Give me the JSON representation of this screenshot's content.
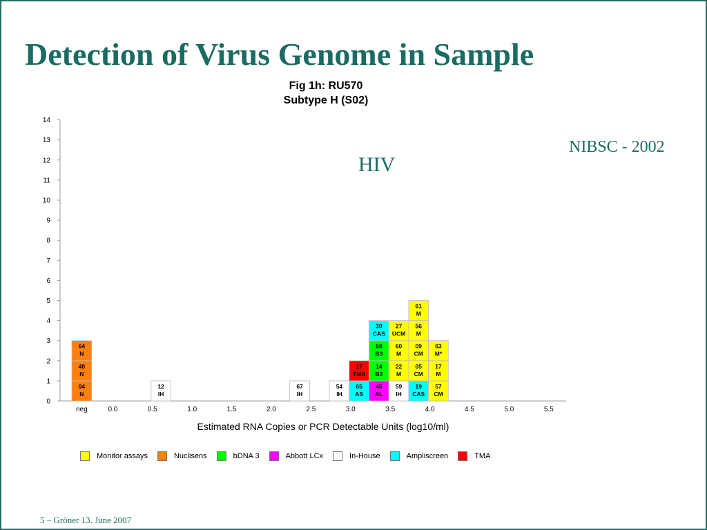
{
  "slide": {
    "title": "Detection of Virus Genome in Sample",
    "virus": "HIV",
    "source": "NIBSC - 2002",
    "footer": "5 – Gröner 13. June 2007"
  },
  "chart_data": {
    "type": "bar",
    "title_line1": "Fig 1h: RU570",
    "title_line2": "Subtype H  (S02)",
    "xlabel": "Estimated RNA Copies or PCR Detectable Units (log10/ml)",
    "ylabel": "",
    "ylim": [
      0,
      14
    ],
    "yticks": [
      "0",
      "1",
      "2",
      "3",
      "4",
      "5",
      "6",
      "7",
      "8",
      "9",
      "10",
      "11",
      "12",
      "13",
      "14"
    ],
    "xticks": [
      "neg",
      "0.0",
      "0.5",
      "1.0",
      "1.5",
      "2.0",
      "2.5",
      "3.0",
      "3.5",
      "4.0",
      "4.5",
      "5.0",
      "5.5"
    ],
    "grid": false,
    "legend": [
      {
        "name": "Monitor assays",
        "color": "#ffff00"
      },
      {
        "name": "Nuclisens",
        "color": "#ff7f0e"
      },
      {
        "name": "bDNA 3",
        "color": "#00ff00"
      },
      {
        "name": "Abbott LCx",
        "color": "#ff00ff"
      },
      {
        "name": "In-House",
        "color": "#ffffff"
      },
      {
        "name": "Ampliscreen",
        "color": "#00ffff"
      },
      {
        "name": "TMA",
        "color": "#ff0000"
      }
    ],
    "stacks": [
      {
        "x": "neg",
        "cells": [
          {
            "lab": "04",
            "code": "N",
            "assay": "Nuclisens"
          },
          {
            "lab": "48",
            "code": "N",
            "assay": "Nuclisens"
          },
          {
            "lab": "64",
            "code": "N",
            "assay": "Nuclisens"
          }
        ]
      },
      {
        "x": 0.5,
        "cells": [
          {
            "lab": "12",
            "code": "IH",
            "assay": "In-House"
          }
        ]
      },
      {
        "x": 2.25,
        "cells": [
          {
            "lab": "67",
            "code": "IH",
            "assay": "In-House"
          }
        ]
      },
      {
        "x": 2.75,
        "cells": [
          {
            "lab": "54",
            "code": "IH",
            "assay": "In-House"
          }
        ]
      },
      {
        "x": 3.0,
        "cells": [
          {
            "lab": "65",
            "code": "AS",
            "assay": "Ampliscreen"
          },
          {
            "lab": "17",
            "code": "TMA",
            "assay": "TMA"
          }
        ]
      },
      {
        "x": 3.25,
        "cells": [
          {
            "lab": "45",
            "code": "AL",
            "assay": "Abbott LCx"
          },
          {
            "lab": "14",
            "code": "B3",
            "assay": "bDNA 3"
          },
          {
            "lab": "58",
            "code": "B3",
            "assay": "bDNA 3"
          },
          {
            "lab": "30",
            "code": "CAS",
            "assay": "Ampliscreen"
          }
        ]
      },
      {
        "x": 3.5,
        "cells": [
          {
            "lab": "59",
            "code": "IH",
            "assay": "In-House"
          },
          {
            "lab": "22",
            "code": "M",
            "assay": "Monitor assays"
          },
          {
            "lab": "60",
            "code": "M",
            "assay": "Monitor assays"
          },
          {
            "lab": "27",
            "code": "UCM",
            "assay": "Monitor assays"
          }
        ]
      },
      {
        "x": 3.75,
        "cells": [
          {
            "lab": "19",
            "code": "CAS",
            "assay": "Ampliscreen"
          },
          {
            "lab": "05",
            "code": "CM",
            "assay": "Monitor assays"
          },
          {
            "lab": "09",
            "code": "CM",
            "assay": "Monitor assays"
          },
          {
            "lab": "56",
            "code": "M",
            "assay": "Monitor assays"
          },
          {
            "lab": "61",
            "code": "M",
            "assay": "Monitor assays"
          }
        ]
      },
      {
        "x": 4.0,
        "cells": [
          {
            "lab": "57",
            "code": "CM",
            "assay": "Monitor assays"
          },
          {
            "lab": "17",
            "code": "M",
            "assay": "Monitor assays"
          },
          {
            "lab": "63",
            "code": "M*",
            "assay": "Monitor assays"
          }
        ]
      }
    ]
  }
}
